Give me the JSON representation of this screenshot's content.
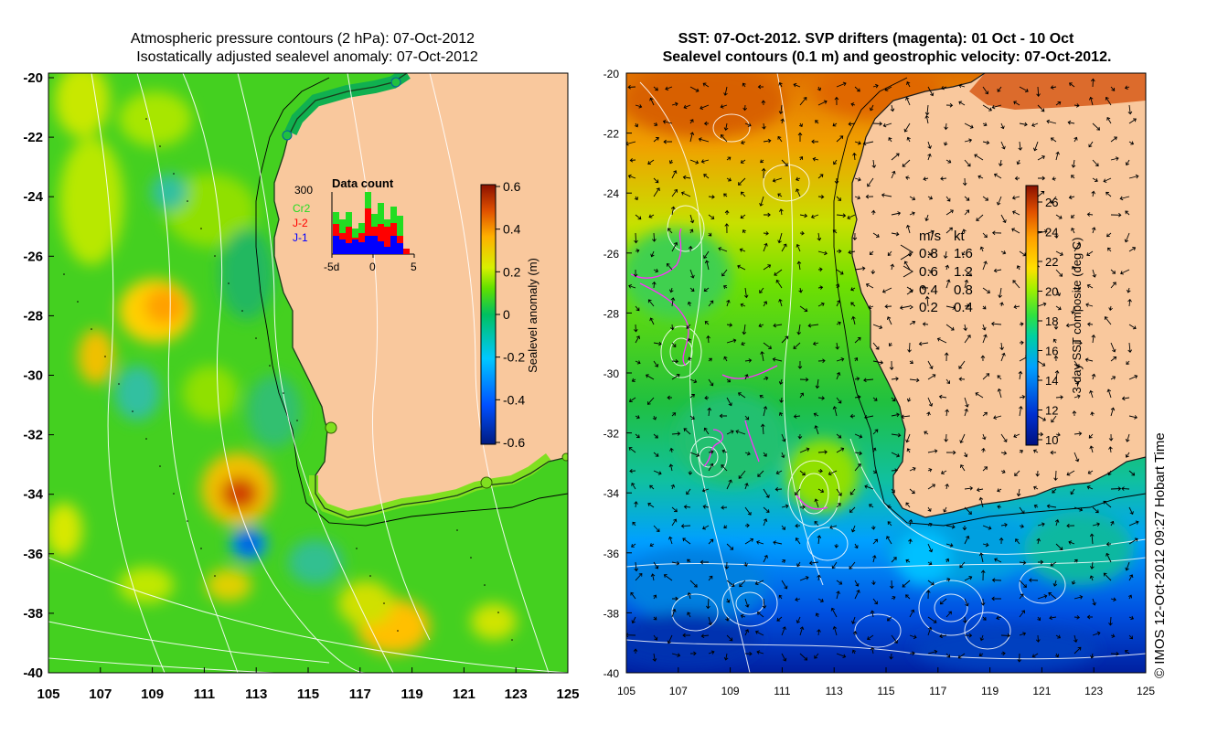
{
  "left_panel": {
    "title_line1": "Atmospheric pressure contours (2 hPa): 07-Oct-2012",
    "title_line2": "Isostatically adjusted sealevel anomaly: 07-Oct-2012",
    "y_ticks": [
      "-20",
      "-22",
      "-24",
      "-26",
      "-28",
      "-30",
      "-32",
      "-34",
      "-36",
      "-38",
      "-40"
    ],
    "x_ticks": [
      "105",
      "107",
      "109",
      "111",
      "113",
      "115",
      "117",
      "119",
      "121",
      "123",
      "125"
    ],
    "colorbar": {
      "label": "Sealevel anomaly (m)",
      "ticks": [
        "0.6",
        "0.4",
        "0.2",
        "0",
        "-0.2",
        "-0.4",
        "-0.6"
      ]
    },
    "inset": {
      "title": "Data count",
      "ymax_label": "300",
      "legend": [
        {
          "label": "Cr2",
          "color": "#22dd22"
        },
        {
          "label": "J-2",
          "color": "#ff0000"
        },
        {
          "label": "J-1",
          "color": "#0000ff"
        }
      ],
      "x_ticks": [
        "-5d",
        "0",
        "5"
      ]
    }
  },
  "right_panel": {
    "title_line1": "SST: 07-Oct-2012. SVP drifters (magenta): 01 Oct - 10 Oct",
    "title_line2": "Sealevel contours (0.1 m) and geostrophic velocity: 07-Oct-2012.",
    "y_ticks": [
      "-20",
      "-22",
      "-24",
      "-26",
      "-28",
      "-30",
      "-32",
      "-34",
      "-36",
      "-38",
      "-40"
    ],
    "x_ticks": [
      "105",
      "107",
      "109",
      "111",
      "113",
      "115",
      "117",
      "119",
      "121",
      "123",
      "125"
    ],
    "velocity_legend": {
      "header_ms": "m/s",
      "header_kt": "kt",
      "rows": [
        {
          "ms": "0.8",
          "kt": "1.6"
        },
        {
          "ms": "0.6",
          "kt": "1.2"
        },
        {
          "ms": "0.4",
          "kt": "0.8"
        },
        {
          "ms": "0.2",
          "kt": "0.4"
        }
      ]
    },
    "colorbar": {
      "label": "3-day SST composite (deg C)",
      "ticks": [
        "26",
        "24",
        "22",
        "20",
        "18",
        "16",
        "14",
        "12",
        "10"
      ]
    }
  },
  "credit": "© IMOS 12-Oct-2012 09:27 Hobart Time"
}
